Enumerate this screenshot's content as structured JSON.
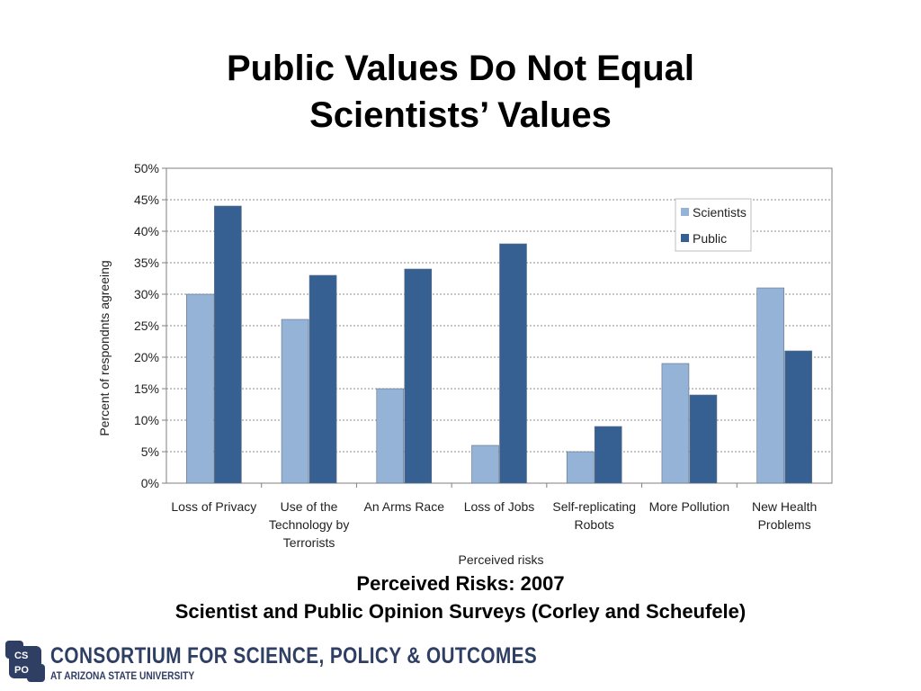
{
  "slide": {
    "title_line1": "Public Values Do Not Equal",
    "title_line2": "Scientists’ Values",
    "caption_line1": "Perceived Risks: 2007",
    "caption_line2": "Scientist and Public Opinion Surveys (Corley and Scheufele)"
  },
  "logo": {
    "line1": "CONSORTIUM FOR SCIENCE, POLICY & OUTCOMES",
    "line2": "AT ARIZONA STATE UNIVERSITY",
    "mark_text": "CSPO",
    "color": "#2f3e63"
  },
  "chart_data": {
    "type": "bar",
    "xlabel": "Perceived risks",
    "ylabel": "Percent of respondnts agreeing",
    "ylim": [
      0,
      50
    ],
    "ytick_step": 5,
    "ytick_labels": [
      "0%",
      "5%",
      "10%",
      "15%",
      "20%",
      "25%",
      "30%",
      "35%",
      "40%",
      "45%",
      "50%"
    ],
    "grid": true,
    "legend_position": "top-right",
    "categories": [
      [
        "Loss of Privacy"
      ],
      [
        "Use of the",
        "Technology by",
        "Terrorists"
      ],
      [
        "An Arms Race"
      ],
      [
        "Loss of Jobs"
      ],
      [
        "Self-replicating",
        "Robots"
      ],
      [
        "More Pollution"
      ],
      [
        "New Health",
        "Problems"
      ]
    ],
    "series": [
      {
        "name": "Scientists",
        "color": "#95b3d7",
        "values": [
          30,
          26,
          15,
          6,
          5,
          19,
          31
        ]
      },
      {
        "name": "Public",
        "color": "#376092",
        "values": [
          44,
          33,
          34,
          38,
          9,
          14,
          21
        ]
      }
    ]
  }
}
